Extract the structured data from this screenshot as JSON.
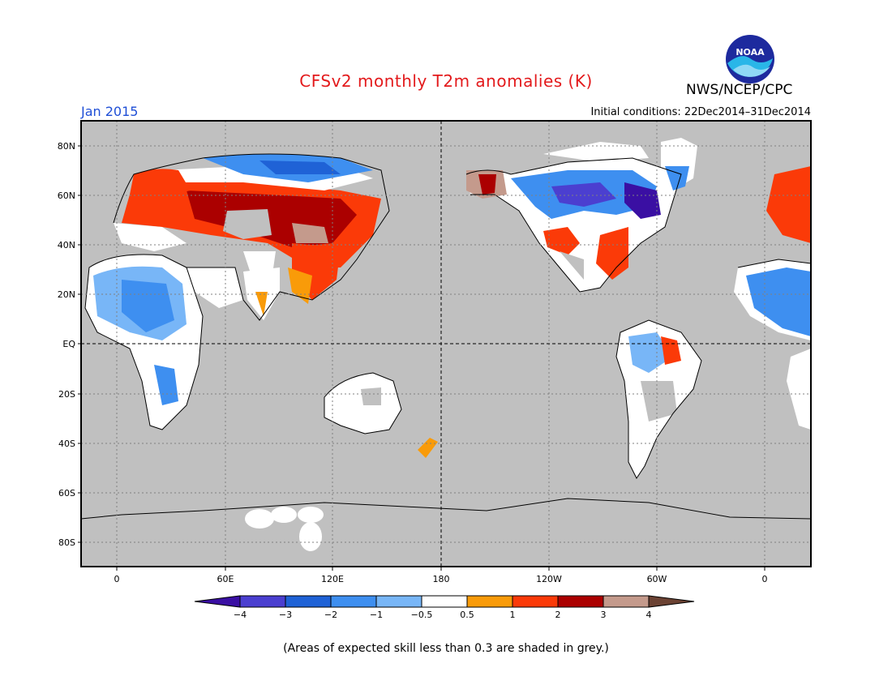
{
  "header": {
    "title": "CFSv2 monthly T2m anomalies (K)",
    "agency": "NWS/NCEP/CPC",
    "logo_text": "NOAA",
    "month": "Jan 2015",
    "initial_conditions": "Initial conditions: 22Dec2014–31Dec2014"
  },
  "axes": {
    "lat_labels": [
      "80N",
      "60N",
      "40N",
      "20N",
      "EQ",
      "20S",
      "40S",
      "60S",
      "80S"
    ],
    "lon_labels": [
      "0",
      "60E",
      "120E",
      "180",
      "120W",
      "60W",
      "0"
    ]
  },
  "legend": {
    "tick_labels": [
      "−4",
      "−3",
      "−2",
      "−1",
      "−0.5",
      "0.5",
      "1",
      "2",
      "3",
      "4"
    ],
    "colors": [
      "#3a0fa3",
      "#4b3fd0",
      "#1f62d6",
      "#3e8ff0",
      "#78b6f7",
      "#ffffff",
      "#f99b09",
      "#fb3a08",
      "#ab0000",
      "#c49a8c",
      "#6b4233"
    ],
    "note": "(Areas of expected skill less than 0.3 are shaded in grey.)"
  },
  "map_colors": {
    "grey": "#c0c0c0",
    "ocean": "#c0c0c0"
  }
}
